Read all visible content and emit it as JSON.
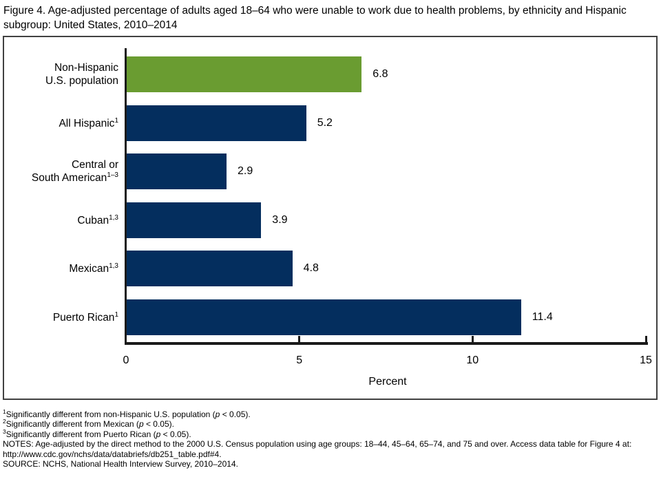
{
  "title": "Figure 4. Age-adjusted percentage of adults aged 18–64 who were unable to work due to health problems, by ethnicity and Hispanic subgroup: United States, 2010–2014",
  "colors": {
    "highlight_green": "#6a9c31",
    "bar_navy": "#042e5e",
    "axis_black": "#1a1a1a",
    "frame_border": "#404040"
  },
  "chart_data": {
    "type": "bar",
    "orientation": "horizontal",
    "title": "Figure 4. Age-adjusted percentage of adults aged 18–64 who were unable to work due to health problems, by ethnicity and Hispanic subgroup: United States, 2010–2014",
    "xlabel": "Percent",
    "ylabel": "",
    "xlim": [
      0,
      15
    ],
    "xticks": [
      0,
      5,
      10,
      15
    ],
    "grid": false,
    "legend": false,
    "categories": [
      "Non-Hispanic U.S. population",
      "All Hispanic¹",
      "Central or South American¹⁻³",
      "Cuban¹,³",
      "Mexican¹,³",
      "Puerto Rican¹"
    ],
    "values": [
      6.8,
      5.2,
      2.9,
      3.9,
      4.8,
      11.4
    ],
    "rows": [
      {
        "lines": [
          "Non-Hispanic",
          "U.S. population"
        ],
        "sup": "",
        "value": 6.8,
        "value_label": "6.8",
        "color": "#6a9c31"
      },
      {
        "lines": [
          "All Hispanic"
        ],
        "sup": "1",
        "value": 5.2,
        "value_label": "5.2",
        "color": "#042e5e"
      },
      {
        "lines": [
          "Central or",
          "South American"
        ],
        "sup": "1–3",
        "value": 2.9,
        "value_label": "2.9",
        "color": "#042e5e"
      },
      {
        "lines": [
          "Cuban"
        ],
        "sup": "1,3",
        "value": 3.9,
        "value_label": "3.9",
        "color": "#042e5e"
      },
      {
        "lines": [
          "Mexican"
        ],
        "sup": "1,3",
        "value": 4.8,
        "value_label": "4.8",
        "color": "#042e5e"
      },
      {
        "lines": [
          "Puerto Rican"
        ],
        "sup": "1",
        "value": 11.4,
        "value_label": "11.4",
        "color": "#042e5e"
      }
    ]
  },
  "footnotes": [
    {
      "sup": "1",
      "pre": "Significantly different from non-Hispanic U.S. population (",
      "pvar": "p",
      "post": " < 0.05)."
    },
    {
      "sup": "2",
      "pre": "Significantly different from Mexican (",
      "pvar": "p",
      "post": " < 0.05)."
    },
    {
      "sup": "3",
      "pre": "Significantly different from Puerto Rican (",
      "pvar": "p",
      "post": " < 0.05)."
    }
  ],
  "notes": "NOTES: Age-adjusted by the direct method to the 2000 U.S. Census population using age groups: 18–44, 45–64, 65–74, and 75 and over. Access data table for Figure 4 at: http://www.cdc.gov/nchs/data/databriefs/db251_table.pdf#4.",
  "source": "SOURCE: NCHS, National Health Interview Survey, 2010–2014."
}
